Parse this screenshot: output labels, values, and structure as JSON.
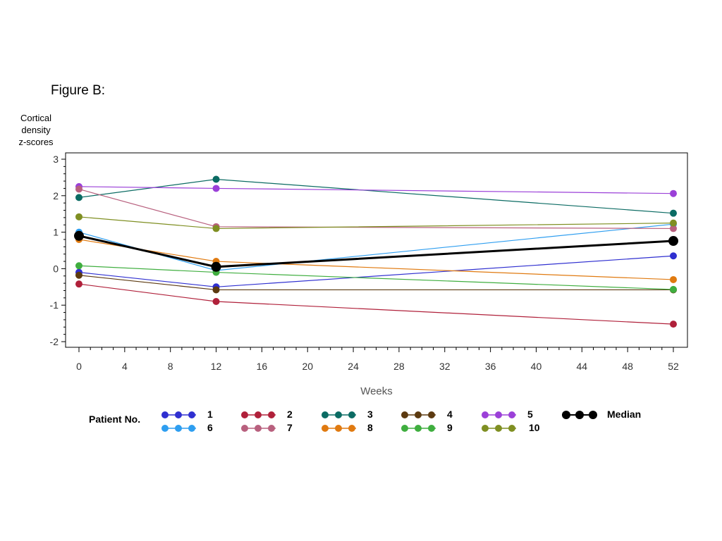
{
  "figure_title": "Figure B:",
  "y_axis_label_lines": [
    "Cortical",
    "density",
    "z-scores"
  ],
  "x_axis_label": "Weeks",
  "legend_title": "Patient No.",
  "chart_data": {
    "type": "line",
    "title": "",
    "xlabel": "Weeks",
    "ylabel": "Cortical density z-scores",
    "x": [
      0,
      12,
      52
    ],
    "xlim": [
      0,
      52
    ],
    "ylim": [
      -2,
      3
    ],
    "x_ticks": [
      0,
      4,
      8,
      12,
      16,
      20,
      24,
      28,
      32,
      36,
      40,
      44,
      48,
      52
    ],
    "y_ticks": [
      -2,
      -1,
      0,
      1,
      2,
      3
    ],
    "grid": false,
    "legend_position": "bottom",
    "series": [
      {
        "name": "1",
        "color": "#2f2fd0",
        "values": [
          -0.1,
          -0.5,
          0.35
        ]
      },
      {
        "name": "2",
        "color": "#b0203a",
        "values": [
          -0.42,
          -0.9,
          -1.52
        ]
      },
      {
        "name": "3",
        "color": "#0b6b63",
        "values": [
          1.95,
          2.45,
          1.52
        ]
      },
      {
        "name": "4",
        "color": "#5c3a10",
        "values": [
          -0.18,
          -0.58,
          -0.58
        ]
      },
      {
        "name": "5",
        "color": "#9b40d8",
        "values": [
          2.25,
          2.2,
          2.06
        ]
      },
      {
        "name": "6",
        "color": "#2e9ef0",
        "values": [
          1.0,
          -0.05,
          1.22
        ]
      },
      {
        "name": "7",
        "color": "#b8607e",
        "values": [
          2.18,
          1.15,
          1.1
        ]
      },
      {
        "name": "8",
        "color": "#e07a10",
        "values": [
          0.8,
          0.2,
          -0.3
        ]
      },
      {
        "name": "9",
        "color": "#3fae3f",
        "values": [
          0.08,
          -0.1,
          -0.57
        ]
      },
      {
        "name": "10",
        "color": "#7f8f22",
        "values": [
          1.42,
          1.1,
          1.25
        ]
      },
      {
        "name": "Median",
        "color": "#000000",
        "values": [
          0.9,
          0.05,
          0.76
        ]
      }
    ]
  }
}
